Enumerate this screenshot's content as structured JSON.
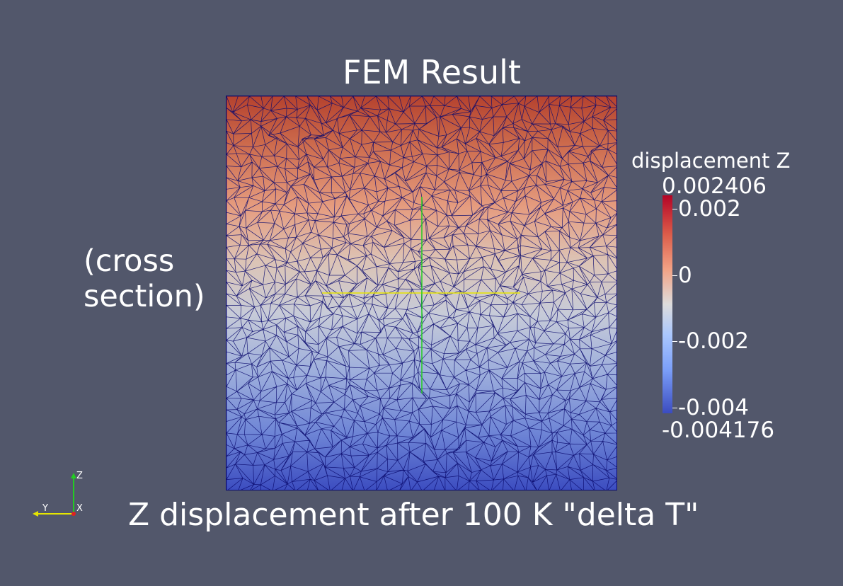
{
  "view": {
    "title": "FEM Result",
    "side_label_line1": "(cross",
    "side_label_line2": "section)",
    "bottom_label": "Z displacement after 100 K \"delta T\""
  },
  "legend": {
    "title": "displacement Z",
    "max_label": "0.002406",
    "min_label": "-0.004176",
    "range": [
      -0.004176,
      0.002406
    ],
    "ticks": [
      {
        "value": 0.002,
        "label": "0.002"
      },
      {
        "value": 0,
        "label": "0"
      },
      {
        "value": -0.002,
        "label": "-0.002"
      },
      {
        "value": -0.004,
        "label": "-0.004"
      }
    ],
    "colors": {
      "high": "#b40426",
      "mid": "#dddcdc",
      "low": "#3b4cc0"
    }
  },
  "orientation_axes": {
    "z_label": "Z",
    "y_label": "Y",
    "x_label": "X",
    "z_color": "#22cc22",
    "y_color": "#e6e600",
    "x_color": "#dd2222"
  },
  "colors": {
    "background": "#52576b",
    "mesh_edge": "#0a0a6e",
    "probe_horizontal": "#e6e600",
    "probe_vertical": "#22cc22"
  }
}
